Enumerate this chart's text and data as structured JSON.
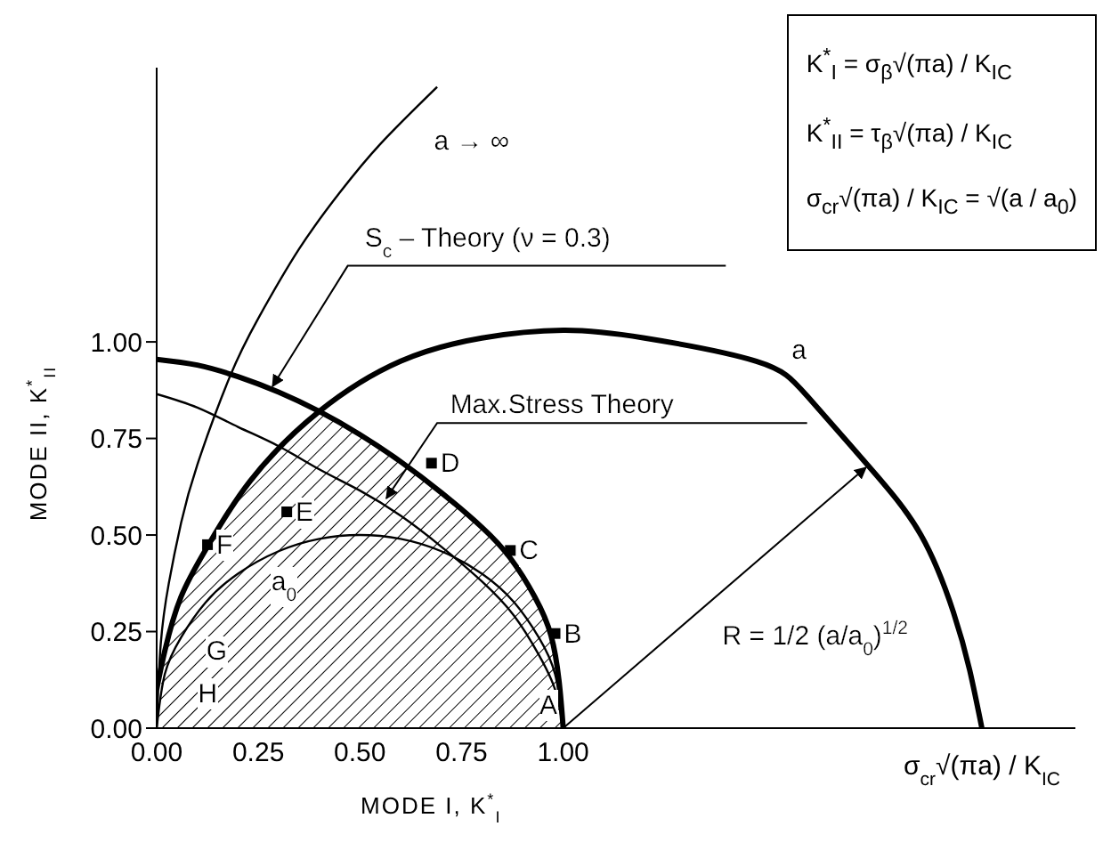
{
  "chart_data": {
    "type": "line",
    "xlabel": "MODE I, K$^{*}$$_{I}$",
    "ylabel": "MODE II, K$^{*}$$_{II}$",
    "xlim": [
      0,
      2.26
    ],
    "ylim": [
      0,
      1.71
    ],
    "xticks": [
      {
        "value": 0,
        "label": "0.00"
      },
      {
        "value": 0.25,
        "label": "0.25"
      },
      {
        "value": 0.5,
        "label": "0.50"
      },
      {
        "value": 0.75,
        "label": "0.75"
      },
      {
        "value": 1,
        "label": "1.00"
      }
    ],
    "yticks": [
      {
        "value": 0,
        "label": "0.00"
      },
      {
        "value": 0.25,
        "label": "0.25"
      },
      {
        "value": 0.5,
        "label": "0.50"
      },
      {
        "value": 0.75,
        "label": "0.75"
      },
      {
        "value": 1,
        "label": "1.00"
      }
    ],
    "grid": false,
    "legend": false,
    "series": [
      {
        "type": "area",
        "color": "#000000",
        "x": [
          0,
          0.02,
          0.06,
          0.125,
          0.23,
          0.4,
          0.5,
          0.6,
          0.7,
          0.8,
          0.87,
          0.93,
          0.97,
          0.99,
          1.0
        ],
        "values": [
          0,
          0.2,
          0.34,
          0.47,
          0.64,
          0.82,
          0.76,
          0.69,
          0.61,
          0.52,
          0.44,
          0.34,
          0.24,
          0.12,
          0
        ]
      },
      {
        "color": "#000000",
        "x": [
          0,
          0.02,
          0.06,
          0.125,
          0.23,
          0.4,
          0.6,
          0.8,
          1.0,
          1.2,
          1.475,
          1.6,
          1.75,
          1.88,
          1.96,
          2.0,
          2.03
        ],
        "values": [
          0.1,
          0.2,
          0.34,
          0.47,
          0.64,
          0.82,
          0.95,
          1.01,
          1.03,
          1.01,
          0.95,
          0.86,
          0.68,
          0.5,
          0.3,
          0.15,
          0
        ]
      },
      {
        "color": "#000000",
        "x": [
          0,
          0.1,
          0.2,
          0.3,
          0.4,
          0.5,
          0.6,
          0.7,
          0.8,
          0.87,
          0.93,
          0.97,
          0.99,
          1.0
        ],
        "values": [
          0.955,
          0.94,
          0.91,
          0.87,
          0.82,
          0.76,
          0.69,
          0.61,
          0.52,
          0.44,
          0.34,
          0.24,
          0.12,
          0
        ]
      },
      {
        "color": "#000000",
        "x": [
          0,
          0.1,
          0.2,
          0.3,
          0.4,
          0.5,
          0.6,
          0.7,
          0.8,
          0.88,
          0.94,
          0.98,
          1.0
        ],
        "values": [
          0.865,
          0.83,
          0.78,
          0.73,
          0.67,
          0.615,
          0.55,
          0.47,
          0.38,
          0.29,
          0.19,
          0.1,
          0
        ]
      },
      {
        "color": "#000000",
        "x": [
          0,
          0.02,
          0.06,
          0.12,
          0.2,
          0.3,
          0.4,
          0.5,
          0.6,
          0.7,
          0.8,
          0.88,
          0.94,
          0.98,
          1.0
        ],
        "values": [
          0,
          0.14,
          0.235,
          0.325,
          0.4,
          0.458,
          0.49,
          0.5,
          0.49,
          0.458,
          0.4,
          0.325,
          0.235,
          0.14,
          0
        ]
      },
      {
        "color": "#000000",
        "x": [
          0,
          0.01,
          0.03,
          0.06,
          0.1,
          0.18,
          0.25,
          0.35,
          0.45,
          0.55,
          0.69
        ],
        "values": [
          0,
          0.218,
          0.376,
          0.531,
          0.682,
          0.91,
          1.061,
          1.24,
          1.386,
          1.512,
          1.66
        ]
      },
      {
        "type": "scatter",
        "marker": "square",
        "color": "#000000",
        "x": [
          0.125,
          0.32,
          0.676,
          0.87,
          0.98
        ],
        "values": [
          0.475,
          0.56,
          0.686,
          0.46,
          0.245
        ]
      }
    ],
    "annotations": [
      {
        "text": "F",
        "x": 0.125,
        "y": 0.475
      },
      {
        "text": "E",
        "x": 0.32,
        "y": 0.56
      },
      {
        "text": "D",
        "x": 0.676,
        "y": 0.686
      },
      {
        "text": "C",
        "x": 0.87,
        "y": 0.46
      },
      {
        "text": "B",
        "x": 0.98,
        "y": 0.245
      },
      "G",
      "H",
      "A",
      "a → ∞",
      "S$_{c}$ – Theory (ν = 0.3)",
      "Max.Stress Theory",
      "a",
      "a$_{0}$",
      "R = 1/2 (a/a$_{0}$)$^{1/2}$",
      "σ$_{cr}$√(πa) / K$_{IC}$",
      "K$^{*}$$_{I}$ = σ$_{β}$√(πa) / K$_{IC}$",
      "K$^{*}$$_{II}$ = τ$_{β}$√(πa) / K$_{IC}$",
      "σ$_{cr}$√(πa) / K$_{IC}$ = √(a / a$_{0}$)"
    ]
  }
}
